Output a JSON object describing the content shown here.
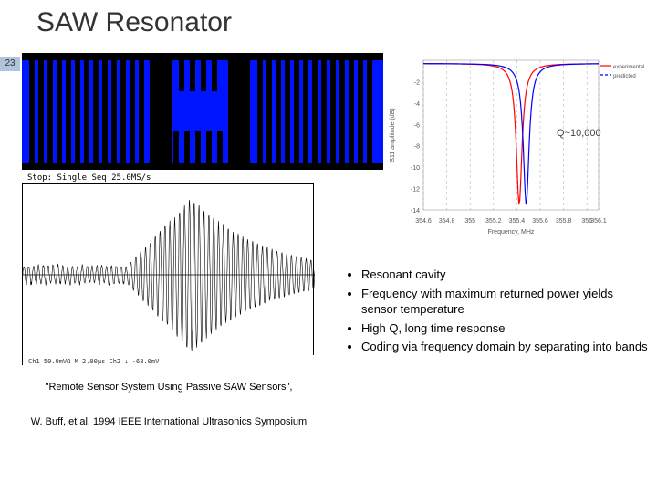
{
  "title": "SAW Resonator",
  "slide_number": "23",
  "q_label": "Q~10,000",
  "stop_label": "Stop: Single Seq 25.0MS/s",
  "bullets": [
    "Resonant cavity",
    "Frequency with maximum returned power yields sensor temperature",
    "High Q, long time response",
    "Coding via frequency domain by separating into bands"
  ],
  "citation_line1": "\"Remote Sensor System Using Passive SAW Sensors\",",
  "citation_line2": "W. Buff, et al, 1994 IEEE International Ultrasonics Symposium",
  "saw_device": {
    "background": "#0015ff",
    "finger_color": "#000000",
    "left_reflector_x": [
      8,
      18,
      28,
      38,
      48,
      58,
      68,
      78,
      88,
      98,
      108,
      118,
      128
    ],
    "wide_gap1_x": 140,
    "wide_gap1_w": 24,
    "short_top_x": [
      172,
      184,
      196,
      208
    ],
    "short_bot_x": [
      166,
      178,
      190,
      202,
      214
    ],
    "wide_gap2_x": 226,
    "wide_gap2_w": 24,
    "right_reflector_x": [
      258,
      268,
      278,
      288,
      298,
      308,
      318,
      328,
      338,
      348,
      358,
      368,
      378
    ]
  },
  "s11": {
    "xlim": [
      354.6,
      356.1
    ],
    "ylim": [
      -14,
      0
    ],
    "xticks": [
      354.6,
      354.8,
      355,
      355.2,
      355.4,
      355.6,
      355.8,
      356,
      356.1
    ],
    "yticks": [
      -2,
      -4,
      -6,
      -8,
      -10,
      -12,
      -14
    ],
    "xlabel": "Frequency, MHz",
    "ylabel": "S11 amplitude (dB)",
    "legend": [
      "experimental",
      "predicted"
    ],
    "legend_colors": [
      "#ff0000",
      "#0000ff"
    ],
    "grid_color": "#aaaaaa",
    "red_dip_x": 355.42,
    "blue_dip_x": 355.48,
    "dip_depth": -13.2,
    "background": "#ffffff",
    "font_size": 7
  },
  "time_response": {
    "envelope_peak_x": 0.58,
    "decay_tau": 0.25,
    "oscillation_periods": 60,
    "color": "#000000",
    "border": "#000000"
  },
  "colors": {
    "bg": "#ffffff",
    "title": "#333333",
    "badge": "#b0c4de"
  }
}
